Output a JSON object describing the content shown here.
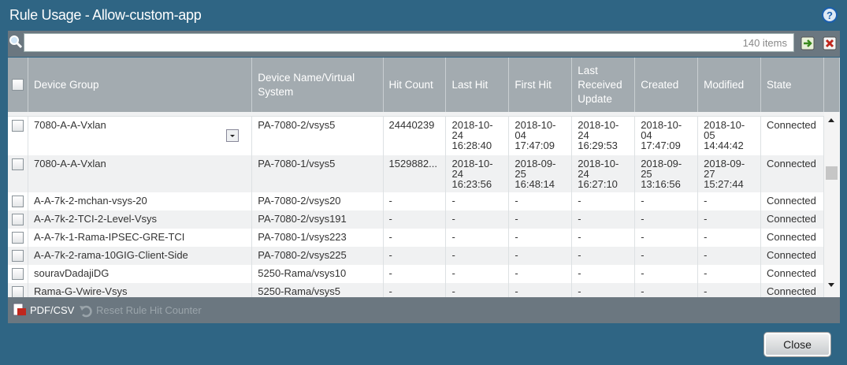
{
  "title": "Rule Usage - Allow-custom-app",
  "search": {
    "count": "140 items"
  },
  "table": {
    "headers": [
      "Device Group",
      "Device Name/Virtual System",
      "Hit Count",
      "Last Hit",
      "First Hit",
      "Last Received Update",
      "Created",
      "Modified",
      "State"
    ],
    "rows": [
      [
        "7080-A-A-Vxlan",
        "PA-7080-2/vsys5",
        "24440239",
        "2018-10-24 16:28:40",
        "2018-10-04 17:47:09",
        "2018-10-24 16:29:53",
        "2018-10-04 17:47:09",
        "2018-10-05 14:44:42",
        "Connected"
      ],
      [
        "7080-A-A-Vxlan",
        "PA-7080-1/vsys5",
        "1529882...",
        "2018-10-24 16:23:56",
        "2018-09-25 16:48:14",
        "2018-10-24 16:27:10",
        "2018-09-25 13:16:56",
        "2018-09-27 15:27:44",
        "Connected"
      ],
      [
        "A-A-7k-2-mchan-vsys-20",
        "PA-7080-2/vsys20",
        "-",
        "-",
        "-",
        "-",
        "-",
        "-",
        "Connected"
      ],
      [
        "A-A-7k-2-TCI-2-Level-Vsys",
        "PA-7080-2/vsys191",
        "-",
        "-",
        "-",
        "-",
        "-",
        "-",
        "Connected"
      ],
      [
        "A-A-7k-1-Rama-IPSEC-GRE-TCI",
        "PA-7080-1/vsys223",
        "-",
        "-",
        "-",
        "-",
        "-",
        "-",
        "Connected"
      ],
      [
        "A-A-7k-2-rama-10GIG-Client-Side",
        "PA-7080-2/vsys225",
        "-",
        "-",
        "-",
        "-",
        "-",
        "-",
        "Connected"
      ],
      [
        "souravDadajiDG",
        "5250-Rama/vsys10",
        "-",
        "-",
        "-",
        "-",
        "-",
        "-",
        "Connected"
      ],
      [
        "Rama-G-Vwire-Vsys",
        "5250-Rama/vsys5",
        "-",
        "-",
        "-",
        "-",
        "-",
        "-",
        "Connected"
      ]
    ]
  },
  "toolbar": {
    "export": "PDF/CSV",
    "reset": "Reset Rule Hit Counter"
  },
  "footer": {
    "close": "Close"
  }
}
